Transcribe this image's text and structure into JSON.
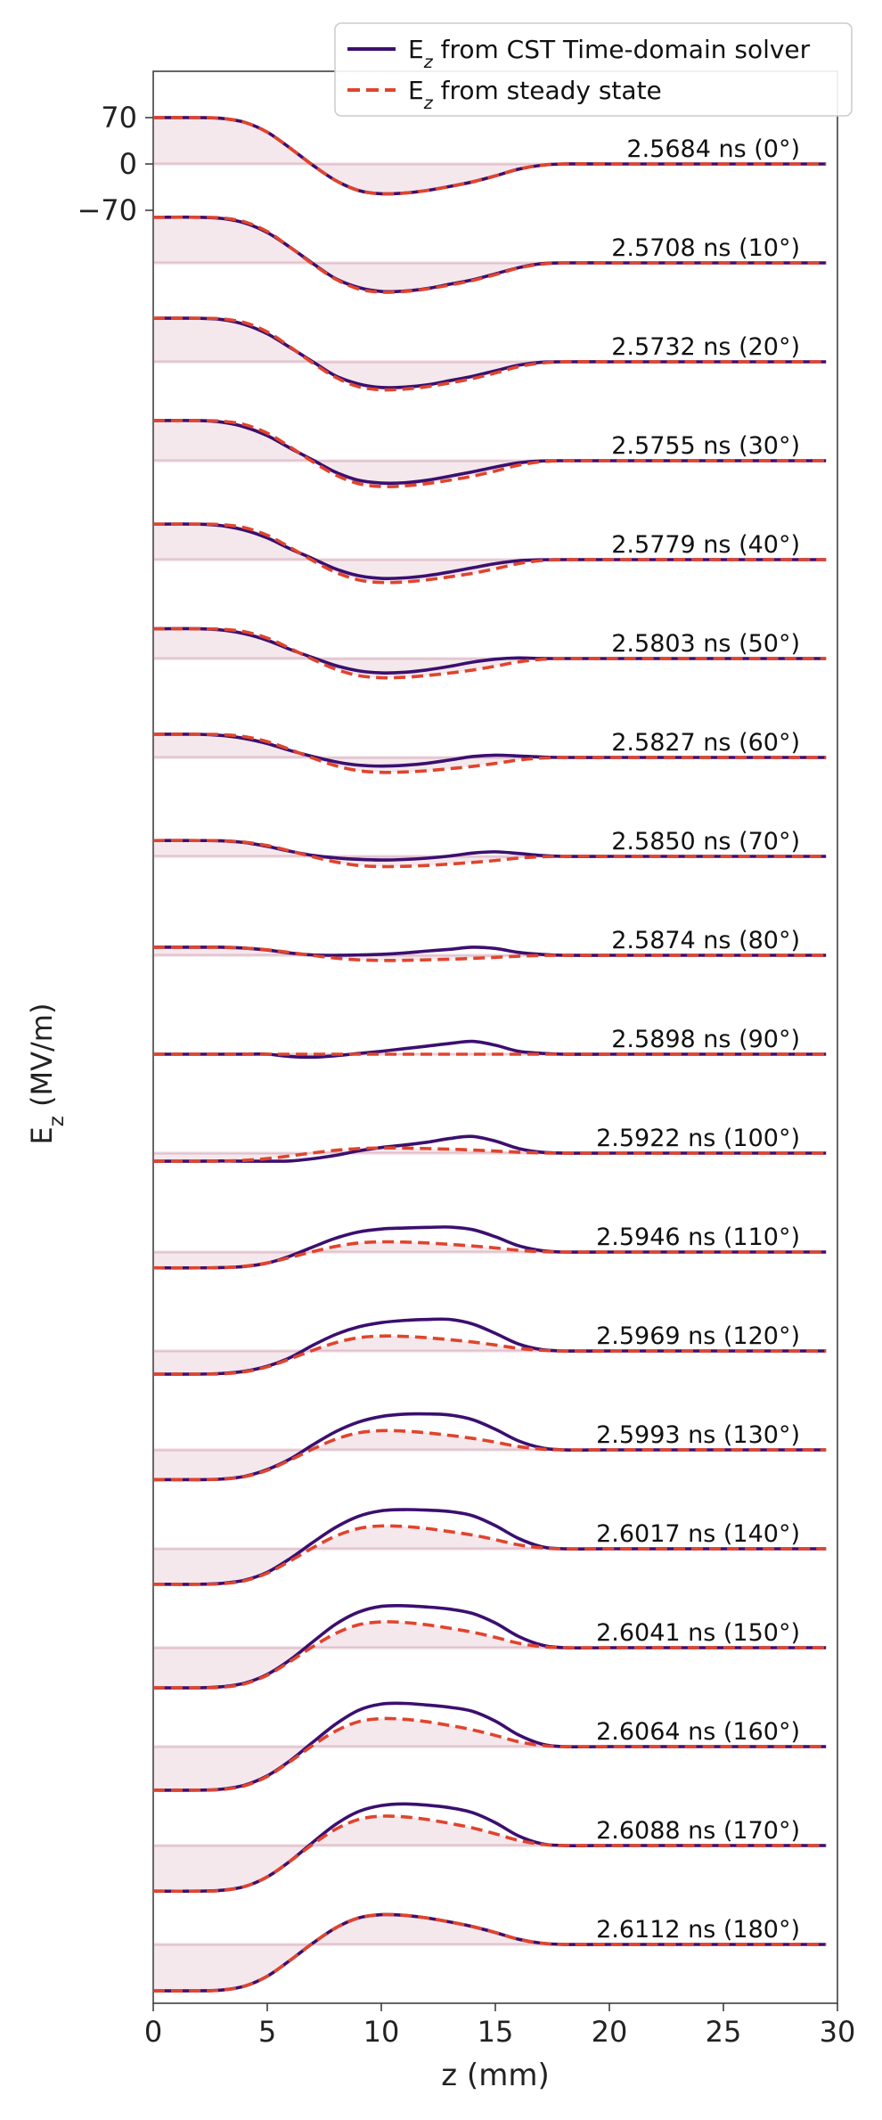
{
  "chart_data": {
    "type": "line",
    "xlabel": "z (mm)",
    "ylabel_main": "E",
    "ylabel_sub": "z",
    "ylabel_unit": " (MV/m)",
    "xlim": [
      0,
      30
    ],
    "x_ticks": [
      0,
      5,
      10,
      15,
      20,
      25,
      30
    ],
    "y_ticks": [
      {
        "value": 70,
        "label": "70"
      },
      {
        "value": 0,
        "label": "0"
      },
      {
        "value": -70,
        "label": "−70"
      }
    ],
    "grid": false,
    "legend_position": "top-right",
    "legend": [
      {
        "main": "E",
        "sub": "z",
        "rest": " from CST Time-domain solver",
        "color": "#3b0f6f",
        "dash": "solid"
      },
      {
        "main": "E",
        "sub": "z",
        "rest": " from steady state",
        "color": "#e0442d",
        "dash": "dashed"
      }
    ],
    "colors": {
      "cst": "#3b0f6f",
      "steady": "#e0442d",
      "fill": "#b5657f"
    },
    "profile_x": [
      0,
      2,
      3,
      4,
      5,
      6,
      7,
      8,
      9,
      10,
      11,
      12,
      13,
      14,
      15,
      16,
      17,
      18,
      20,
      22,
      25,
      29.5
    ],
    "series": [
      {
        "label": "2.5684 ns (0°)",
        "cst": [
          70,
          70,
          68.9,
          63,
          48,
          24,
          -2,
          -25,
          -40,
          -45,
          -44,
          -40,
          -34,
          -27,
          -18,
          -8,
          -2,
          0,
          0,
          0,
          0,
          0
        ],
        "steady": [
          70,
          70,
          68.9,
          63,
          48,
          24,
          -2,
          -25,
          -40,
          -45,
          -44,
          -40,
          -34,
          -27,
          -18,
          -8,
          -2,
          0,
          0,
          0,
          0,
          0
        ]
      },
      {
        "label": "2.5708 ns (10°)",
        "cst": [
          68.9,
          68.9,
          67.1,
          60.4,
          45.9,
          23.6,
          -1,
          -23.8,
          -37.2,
          -43.1,
          -42.6,
          -38.8,
          -32.2,
          -25.6,
          -16.6,
          -7.4,
          -1.3,
          0,
          0,
          0,
          0,
          0
        ],
        "steady": [
          68.9,
          68.9,
          67.9,
          62,
          47.3,
          23.6,
          -2,
          -24.6,
          -39.4,
          -44.3,
          -43.3,
          -39.4,
          -33.5,
          -26.6,
          -17.7,
          -7.9,
          -2,
          0,
          0,
          0,
          0,
          0
        ]
      },
      {
        "label": "2.5732 ns (20°)",
        "cst": [
          65.8,
          65.8,
          63.9,
          56.5,
          42.3,
          21.6,
          0,
          -21.3,
          -33.4,
          -38.8,
          -38.3,
          -34.9,
          -28.5,
          -21.9,
          -13.6,
          -5.2,
          -0.7,
          0,
          0,
          0,
          0,
          0
        ],
        "steady": [
          65.8,
          65.8,
          64.8,
          59.2,
          45.1,
          22.6,
          -1.9,
          -23.5,
          -37.6,
          -42.3,
          -41.3,
          -37.6,
          -31.9,
          -25.4,
          -16.9,
          -7.5,
          -1.9,
          0,
          0,
          0,
          0,
          0
        ]
      },
      {
        "label": "2.5755 ns (30°)",
        "cst": [
          60.6,
          60.6,
          58.3,
          51,
          37.8,
          19,
          1,
          -17.4,
          -29.5,
          -33.7,
          -33.3,
          -29.5,
          -23.4,
          -16.8,
          -9.6,
          -3.3,
          -0.4,
          0,
          0,
          0,
          0,
          0
        ],
        "steady": [
          60.6,
          60.6,
          59.7,
          54.6,
          41.6,
          20.8,
          -1.7,
          -21.6,
          -34.6,
          -39,
          -38.1,
          -34.6,
          -29.4,
          -23.4,
          -15.6,
          -6.9,
          -1.7,
          0,
          0,
          0,
          0,
          0
        ]
      },
      {
        "label": "2.5779 ns (40°)",
        "cst": [
          53.6,
          53.6,
          51.3,
          44.6,
          32.8,
          16.4,
          1.4,
          -14,
          -24.2,
          -28.3,
          -27.6,
          -24.2,
          -18.7,
          -12.3,
          -6.1,
          -1.7,
          -0.2,
          0,
          0,
          0,
          0,
          0
        ],
        "steady": [
          53.6,
          53.6,
          52.8,
          48.3,
          36.8,
          18.4,
          -1.5,
          -19.2,
          -30.6,
          -34.5,
          -33.7,
          -30.6,
          -26,
          -20.7,
          -13.8,
          -6.1,
          -1.5,
          0,
          0,
          0,
          0,
          0
        ]
      },
      {
        "label": "2.5803 ns (50°)",
        "cst": [
          45,
          45,
          43.1,
          37.5,
          27.6,
          13.8,
          1.4,
          -10.6,
          -18.5,
          -21.6,
          -20.8,
          -17.2,
          -11.8,
          -5.4,
          -0.9,
          0.9,
          0.1,
          0,
          0,
          0,
          0,
          0
        ],
        "steady": [
          45,
          45,
          44.3,
          40.5,
          30.9,
          15.4,
          -1.3,
          -16.1,
          -25.7,
          -29,
          -28.3,
          -25.7,
          -21.9,
          -17.4,
          -11.6,
          -5.1,
          -1.3,
          0,
          0,
          0,
          0,
          0
        ]
      },
      {
        "label": "2.5827 ns (60°)",
        "cst": [
          35,
          35,
          33.2,
          28.7,
          21,
          10.5,
          1.4,
          -6.6,
          -11.6,
          -13,
          -11.9,
          -8.8,
          -3.9,
          1.4,
          3.5,
          2.3,
          0.7,
          0,
          0,
          0,
          0,
          0
        ],
        "steady": [
          35,
          35,
          34.5,
          31.5,
          24,
          12,
          -1,
          -12.5,
          -20,
          -22.5,
          -22,
          -20,
          -17,
          -13.5,
          -9,
          -4,
          -1,
          0,
          0,
          0,
          0,
          0
        ]
      },
      {
        "label": "2.5850 ns (70°)",
        "cst": [
          23.9,
          23.9,
          23.5,
          20.9,
          15.1,
          7.7,
          1.4,
          -2.3,
          -4.5,
          -5.5,
          -4.7,
          -2.7,
          0.5,
          5,
          6.9,
          4.5,
          1.4,
          0,
          0,
          0,
          0,
          0
        ],
        "steady": [
          23.9,
          23.9,
          23.6,
          21.5,
          16.4,
          8.2,
          -0.7,
          -8.5,
          -13.7,
          -15.4,
          -15,
          -13.7,
          -11.6,
          -9.2,
          -6.2,
          -2.7,
          -0.7,
          0,
          0,
          0,
          0,
          0
        ]
      },
      {
        "label": "2.5874 ns (80°)",
        "cst": [
          12.2,
          12.2,
          12.2,
          10.9,
          8,
          3.4,
          0.5,
          0,
          0.5,
          1.4,
          3.4,
          6.4,
          9,
          12.2,
          10.3,
          4.5,
          1.4,
          0,
          0,
          0,
          0,
          0
        ],
        "steady": [
          12.2,
          12.2,
          12,
          10.9,
          8.3,
          4.2,
          -0.3,
          -4.3,
          -6.9,
          -7.8,
          -7.6,
          -6.9,
          -5.9,
          -4.7,
          -3.1,
          -1.4,
          -0.3,
          0,
          0,
          0,
          0,
          0
        ]
      },
      {
        "label": "2.5898 ns (90°)",
        "cst": [
          0,
          0,
          0,
          0,
          0,
          -3.4,
          -4.4,
          -2.3,
          1.1,
          4.4,
          8.3,
          12.2,
          16.2,
          19.4,
          13.6,
          4.5,
          1.4,
          0,
          0,
          0,
          0,
          0
        ],
        "steady": [
          0,
          0,
          0,
          0,
          0,
          0,
          0,
          0,
          0,
          0,
          0,
          0,
          0,
          0,
          0,
          0,
          0,
          0,
          0,
          0,
          0,
          0
        ]
      },
      {
        "label": "2.5922 ns (100°)",
        "cst": [
          -12.2,
          -12.2,
          -11.9,
          -12.2,
          -12.2,
          -11.9,
          -8.4,
          -3.4,
          3.4,
          8.5,
          12.2,
          16.4,
          22.1,
          25.2,
          18.2,
          7.1,
          1.4,
          0,
          0,
          0,
          0,
          0
        ],
        "steady": [
          -12.2,
          -12.2,
          -12,
          -10.9,
          -8.3,
          -4.2,
          0.3,
          4.3,
          6.9,
          7.8,
          7.6,
          6.9,
          5.9,
          4.7,
          3.1,
          1.4,
          0.3,
          0,
          0,
          0,
          0,
          0
        ]
      },
      {
        "label": "2.5946 ns (110°)",
        "cst": [
          -23.9,
          -23.9,
          -23.5,
          -21.8,
          -16.7,
          -6.1,
          7.7,
          20.9,
          30.3,
          34.8,
          36.3,
          37.2,
          37.7,
          33.9,
          23.1,
          9.7,
          2.3,
          0,
          0,
          0,
          0,
          0
        ],
        "steady": [
          -23.9,
          -23.9,
          -23.6,
          -21.5,
          -16.4,
          -8.2,
          0.7,
          8.5,
          13.7,
          15.4,
          15,
          13.7,
          11.6,
          9.2,
          6.2,
          2.7,
          0.7,
          0,
          0,
          0,
          0,
          0
        ]
      },
      {
        "label": "2.5969 ns (120°)",
        "cst": [
          -35,
          -35,
          -34,
          -30.7,
          -23.1,
          -10.1,
          8.6,
          24.9,
          36.3,
          42.8,
          46.1,
          47.6,
          47.6,
          40.7,
          26.6,
          10.7,
          2.3,
          0,
          0,
          0,
          0,
          0
        ],
        "steady": [
          -35,
          -35,
          -34.5,
          -31.5,
          -24,
          -12,
          1,
          12.5,
          20,
          22.5,
          22,
          20,
          17,
          13.5,
          9,
          4,
          1,
          0,
          0,
          0,
          0,
          0
        ]
      },
      {
        "label": "2.5993 ns (130°)",
        "cst": [
          -45,
          -45,
          -44.1,
          -40,
          -29.7,
          -13.8,
          7.7,
          27.5,
          42,
          50.4,
          53.9,
          54.3,
          52.6,
          45.6,
          31.1,
          13.8,
          3.4,
          0,
          0,
          0,
          0,
          0
        ],
        "steady": [
          -45,
          -45,
          -44.3,
          -40.5,
          -30.9,
          -15.4,
          1.3,
          16.1,
          25.7,
          29,
          28.3,
          25.7,
          21.9,
          17.4,
          11.6,
          5.1,
          1.3,
          0,
          0,
          0,
          0,
          0
        ]
      },
      {
        "label": "2.6017 ns (140°)",
        "cst": [
          -53.6,
          -53.6,
          -52.2,
          -47.5,
          -35.5,
          -14.8,
          9.6,
          32.4,
          49.1,
          57.4,
          59.2,
          58.4,
          56.3,
          50,
          35,
          15.9,
          3.4,
          0,
          0,
          0,
          0,
          0
        ],
        "steady": [
          -53.6,
          -53.6,
          -52.8,
          -48.3,
          -36.8,
          -18.4,
          1.5,
          19.2,
          30.6,
          34.5,
          33.7,
          30.6,
          26,
          20.7,
          13.8,
          6.1,
          1.5,
          0,
          0,
          0,
          0,
          0
        ]
      },
      {
        "label": "2.6041 ns (150°)",
        "cst": [
          -60.6,
          -60.6,
          -59,
          -53.6,
          -40.3,
          -18.3,
          9.1,
          35.5,
          53.7,
          62.5,
          63.4,
          61.5,
          58.3,
          51.8,
          37.3,
          17.4,
          4.4,
          0,
          0,
          0,
          0,
          0
        ],
        "steady": [
          -60.6,
          -60.6,
          -59.7,
          -54.6,
          -41.6,
          -20.8,
          1.7,
          21.6,
          34.6,
          39,
          38.1,
          34.6,
          29.4,
          23.4,
          15.6,
          6.9,
          1.7,
          0,
          0,
          0,
          0,
          0
        ]
      },
      {
        "label": "2.6064 ns (160°)",
        "cst": [
          -65.8,
          -65.8,
          -64.3,
          -58.3,
          -44.1,
          -21.3,
          6.7,
          34,
          54.9,
          64.3,
          65.3,
          62.9,
          59.4,
          53.3,
          38.5,
          18,
          4.2,
          0,
          0,
          0,
          0,
          0
        ],
        "steady": [
          -65.8,
          -65.8,
          -64.8,
          -59.2,
          -45.1,
          -22.6,
          1.9,
          23.5,
          37.6,
          42.3,
          41.3,
          37.6,
          31.9,
          25.4,
          16.9,
          7.5,
          1.9,
          0,
          0,
          0,
          0,
          0
        ]
      },
      {
        "label": "2.6088 ns (170°)",
        "cst": [
          -68.9,
          -68.9,
          -67.6,
          -62,
          -47.3,
          -23.6,
          4.9,
          32,
          51.3,
          60.4,
          62.9,
          61,
          57.1,
          49.7,
          34.5,
          14.8,
          3,
          0,
          0,
          0,
          0,
          0
        ],
        "steady": [
          -68.9,
          -68.9,
          -67.9,
          -62,
          -47.3,
          -23.6,
          2,
          24.6,
          39.4,
          44.3,
          43.3,
          39.4,
          33.5,
          26.6,
          17.7,
          7.9,
          2,
          0,
          0,
          0,
          0,
          0
        ]
      },
      {
        "label": "2.6112 ns (180°)",
        "cst": [
          -70,
          -70,
          -68.9,
          -63,
          -48,
          -24,
          2,
          25,
          40,
          45,
          44,
          40,
          34,
          27,
          18,
          8,
          2,
          0,
          0,
          0,
          0,
          0
        ],
        "steady": [
          -70,
          -70,
          -68.9,
          -63,
          -48,
          -24,
          2,
          25,
          40,
          45,
          44,
          40,
          34,
          27,
          18,
          8,
          2,
          0,
          0,
          0,
          0,
          0
        ]
      }
    ]
  }
}
